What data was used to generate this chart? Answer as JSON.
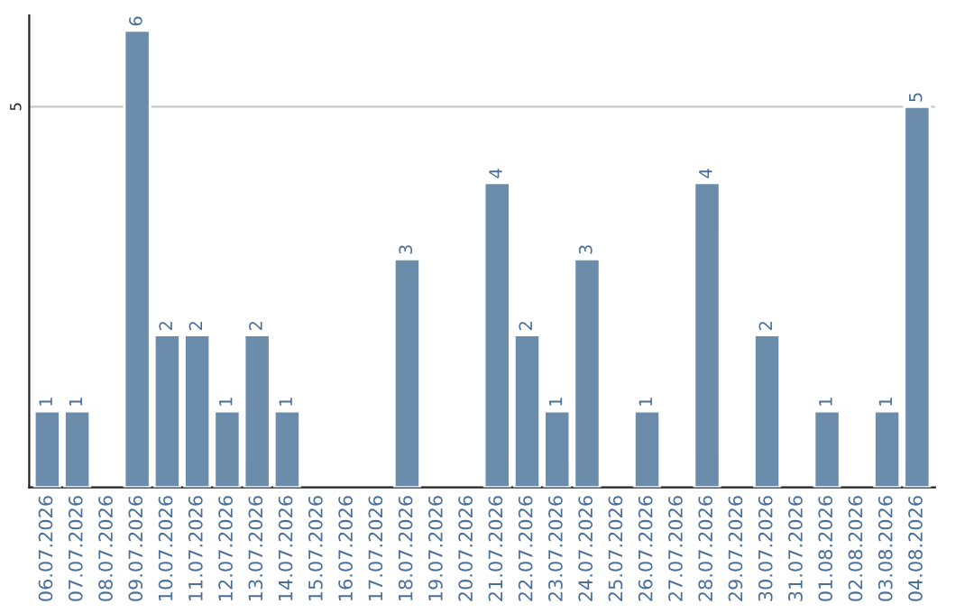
{
  "chart_data": {
    "type": "bar",
    "categories": [
      "06.07.2026",
      "07.07.2026",
      "08.07.2026",
      "09.07.2026",
      "10.07.2026",
      "11.07.2026",
      "12.07.2026",
      "13.07.2026",
      "14.07.2026",
      "15.07.2026",
      "16.07.2026",
      "17.07.2026",
      "18.07.2026",
      "19.07.2026",
      "20.07.2026",
      "21.07.2026",
      "22.07.2026",
      "23.07.2026",
      "24.07.2026",
      "25.07.2026",
      "26.07.2026",
      "27.07.2026",
      "28.07.2026",
      "29.07.2026",
      "30.07.2026",
      "31.07.2026",
      "01.08.2026",
      "02.08.2026",
      "03.08.2026",
      "04.08.2026"
    ],
    "values": [
      1,
      1,
      null,
      6,
      2,
      2,
      1,
      2,
      1,
      null,
      null,
      null,
      3,
      null,
      null,
      4,
      2,
      1,
      3,
      null,
      1,
      null,
      4,
      null,
      2,
      null,
      1,
      null,
      1,
      5
    ],
    "color": "#6b8cab",
    "ylim": [
      0,
      6.2
    ],
    "yticks": [
      5
    ],
    "grid": "y",
    "data_labels": true
  }
}
